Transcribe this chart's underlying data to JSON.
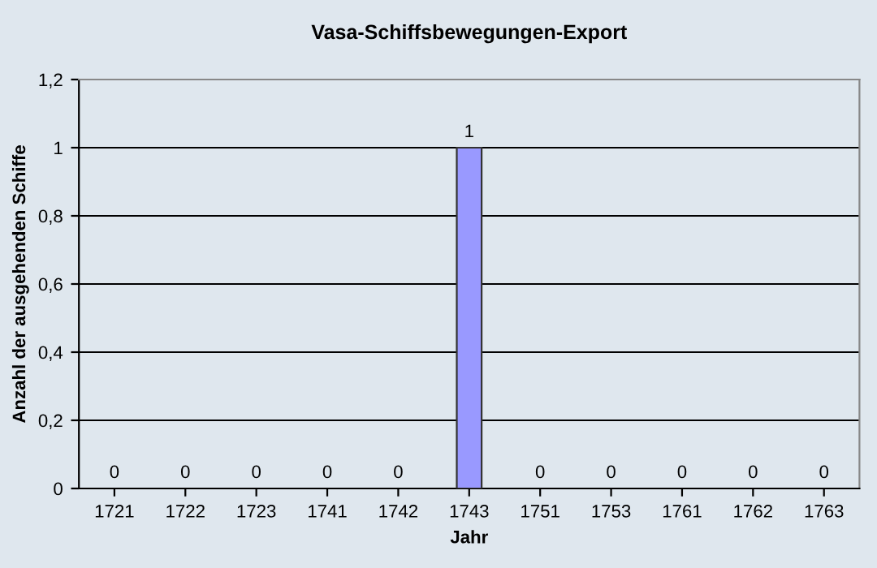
{
  "chart_data": {
    "type": "bar",
    "title": "Vasa-Schiffsbewegungen-Export",
    "xlabel": "Jahr",
    "ylabel": "Anzahl der ausgehenden Schiffe",
    "categories": [
      "1721",
      "1722",
      "1723",
      "1741",
      "1742",
      "1743",
      "1751",
      "1753",
      "1761",
      "1762",
      "1763"
    ],
    "values": [
      0,
      0,
      0,
      0,
      0,
      1,
      0,
      0,
      0,
      0,
      0
    ],
    "color": "#9999ff",
    "ylim": [
      0,
      1.2
    ],
    "yticks": [
      0,
      {
        "value": 0.2,
        "label": "0,2"
      },
      {
        "value": 0.4,
        "label": "0,4"
      },
      {
        "value": 0.6,
        "label": "0,6"
      },
      {
        "value": 0.8,
        "label": "0,8"
      },
      1,
      {
        "value": 1.2,
        "label": "1,2"
      }
    ],
    "grid": "y",
    "data_labels": true
  }
}
